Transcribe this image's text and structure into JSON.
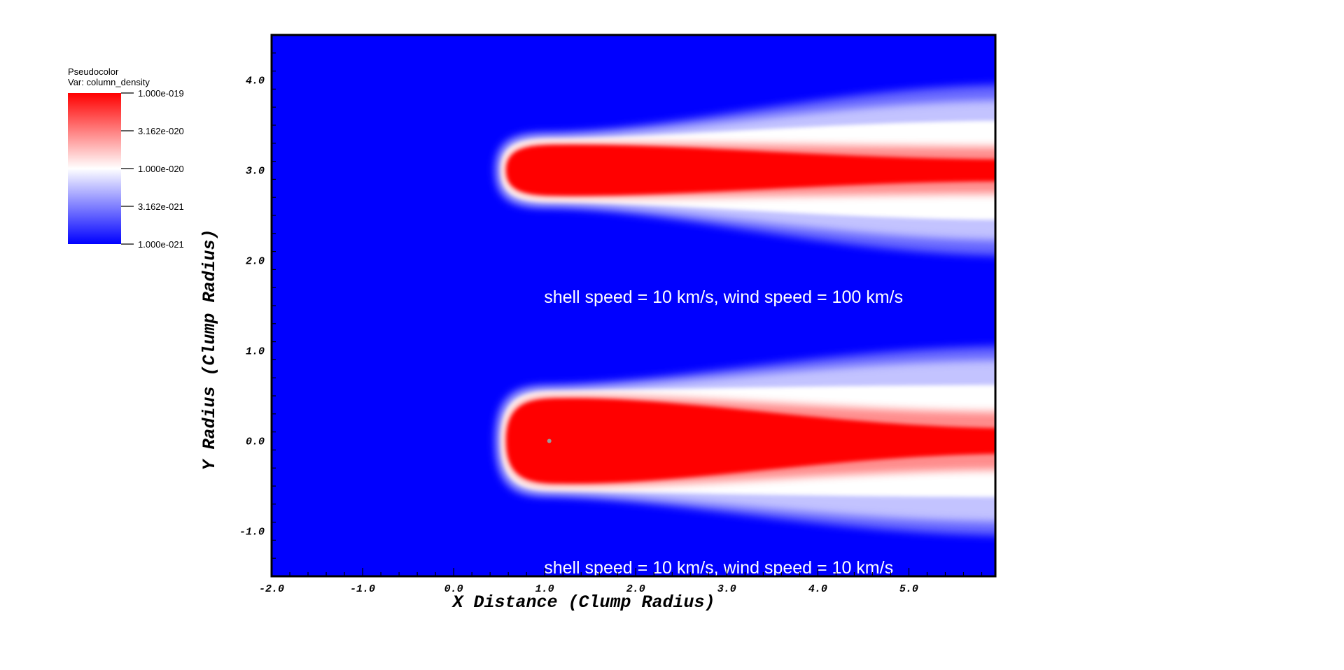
{
  "chart_data": {
    "type": "heatmap",
    "legend": {
      "plot_type": "Pseudocolor",
      "var_label": "Var: column_density",
      "tick_labels": [
        "1.000e-019",
        "3.162e-020",
        "1.000e-020",
        "3.162e-021",
        "1.000e-021"
      ],
      "range": [
        1e-21,
        1e-19
      ],
      "scale": "log",
      "colors": {
        "high": "#ff0000",
        "mid": "#ffffff",
        "low": "#0000ff"
      },
      "placement": "top-left"
    },
    "xlabel": "X Distance (Clump Radius)",
    "ylabel": "Y Radius (Clump Radius)",
    "xlim": [
      -2.0,
      5.95
    ],
    "ylim": [
      -1.5,
      4.5
    ],
    "x_ticks": [
      -2.0,
      -1.0,
      0.0,
      1.0,
      2.0,
      3.0,
      4.0,
      5.0
    ],
    "x_tick_labels": [
      "-2.0",
      "-1.0",
      "0.0",
      "1.0",
      "2.0",
      "3.0",
      "4.0",
      "5.0"
    ],
    "y_ticks": [
      -1.0,
      0.0,
      1.0,
      2.0,
      3.0,
      4.0
    ],
    "y_tick_labels": [
      "-1.0",
      "0.0",
      "1.0",
      "2.0",
      "3.0",
      "4.0"
    ],
    "annotations": [
      {
        "text": "shell speed = 10 km/s, wind speed = 100 km/s",
        "x": 1.0,
        "y": 1.6
      },
      {
        "text": "shell speed = 10 km/s, wind speed = 10 km/s",
        "x": 1.0,
        "y": -1.4
      }
    ],
    "structures": [
      {
        "name": "upper-clump-tail",
        "head_x": 0.5,
        "center_y": 3.0,
        "end_x": 5.95
      },
      {
        "name": "lower-clump-tail",
        "head_x": 0.5,
        "center_y": 0.0,
        "end_x": 5.95
      }
    ],
    "marker": {
      "x": 1.05,
      "y": 0.0
    },
    "grid": false
  }
}
